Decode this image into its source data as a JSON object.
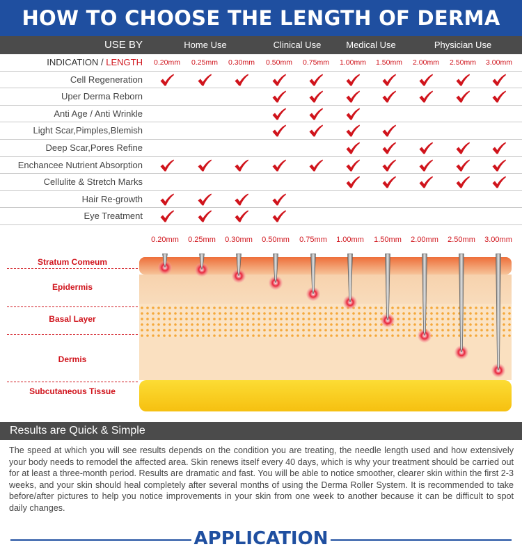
{
  "title": "HOW TO CHOOSE THE LENGTH OF DERMA ROLLER",
  "use_by_label": "USE BY",
  "use_groups": [
    "Home Use",
    "Clinical Use",
    "Medical Use",
    "Physician Use"
  ],
  "indication_label": "INDICATION / ",
  "length_label": "LENGTH",
  "lengths": [
    "0.20mm",
    "0.25mm",
    "0.30mm",
    "0.50mm",
    "0.75mm",
    "1.00mm",
    "1.50mm",
    "2.00mm",
    "2.50mm",
    "3.00mm"
  ],
  "indications": [
    {
      "label": "Cell Regeneration",
      "checks": [
        1,
        1,
        1,
        1,
        1,
        1,
        1,
        1,
        1,
        1
      ]
    },
    {
      "label": "Uper Derma Reborn",
      "checks": [
        0,
        0,
        0,
        1,
        1,
        1,
        1,
        1,
        1,
        1
      ]
    },
    {
      "label": "Anti Age / Anti Wrinkle",
      "checks": [
        0,
        0,
        0,
        1,
        1,
        1,
        0,
        0,
        0,
        0
      ]
    },
    {
      "label": "Light Scar,Pimples,Blemish",
      "checks": [
        0,
        0,
        0,
        1,
        1,
        1,
        1,
        0,
        0,
        0
      ]
    },
    {
      "label": "Deep Scar,Pores Refine",
      "checks": [
        0,
        0,
        0,
        0,
        0,
        1,
        1,
        1,
        1,
        1
      ]
    },
    {
      "label": "Enchancee Nutrient Absorption",
      "checks": [
        1,
        1,
        1,
        1,
        1,
        1,
        1,
        1,
        1,
        1
      ]
    },
    {
      "label": "Cellulite & Stretch Marks",
      "checks": [
        0,
        0,
        0,
        0,
        0,
        1,
        1,
        1,
        1,
        1
      ]
    },
    {
      "label": "Hair Re-growth",
      "checks": [
        1,
        1,
        1,
        1,
        0,
        0,
        0,
        0,
        0,
        0
      ]
    },
    {
      "label": "Eye Treatment",
      "checks": [
        1,
        1,
        1,
        1,
        0,
        0,
        0,
        0,
        0,
        0
      ]
    }
  ],
  "skin_layers": [
    "Stratum Comeum",
    "Epidermis",
    "Basal Layer",
    "Dermis",
    "Subcutaneous Tissue"
  ],
  "results_title": "Results are Quick & Simple",
  "results_text": "The speed at which you will see results depends on the condition you are treating, the needle length used and how extensively your body needs to remodel the affected area. Skin renews itself every 40 days, which is why your treatment should be carried out for at least a three-month period. Results are dramatic and fast. You will be able to notice smoother, clearer skin within the first 2-3 weeks, and your skin should heal completely after several months of using the Derma Roller System. It is recommended to take before/after pictures to help you notice improvements in your skin from one week to another because it can be difficult to spot daily changes.",
  "application_title": "APPLICATION",
  "colors": {
    "brand_blue": "#1f4fa0",
    "dark_bar": "#4b4b4b",
    "accent_red": "#d0141c"
  }
}
